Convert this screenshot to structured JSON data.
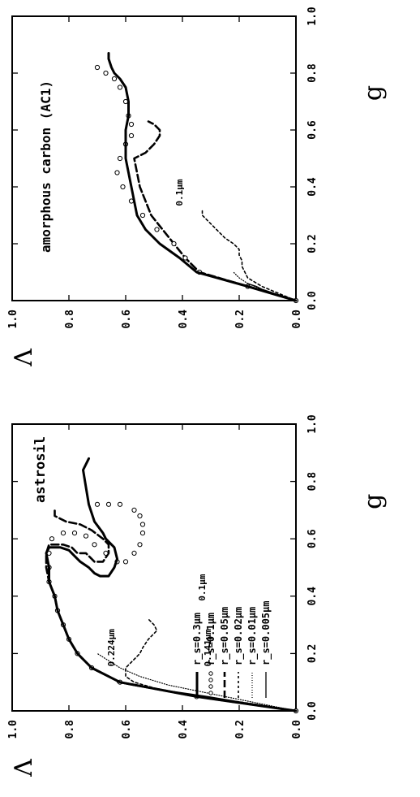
{
  "chart_data": [
    {
      "type": "line",
      "panel": "astrosil",
      "title": "astrosil",
      "xlabel": "g",
      "ylabel": "Λ",
      "xlim": [
        0,
        1
      ],
      "ylim": [
        0,
        1
      ],
      "xticks": [
        "0.0",
        "0.2",
        "0.4",
        "0.6",
        "0.8",
        "1.0"
      ],
      "yticks": [
        "0.0",
        "0.2",
        "0.4",
        "0.6",
        "0.8",
        "1.0"
      ],
      "legend_position": "bottom-right",
      "annotations": [
        {
          "text": "0.224μm",
          "x": 0.22,
          "y": 0.64
        },
        {
          "text": "0.1μm",
          "x": 0.43,
          "y": 0.32
        },
        {
          "text": "0.141μm",
          "x": 0.22,
          "y": 0.3
        }
      ],
      "series": [
        {
          "name": "r_s=0.005μm",
          "style": "solid-thin",
          "x": [
            0.0,
            0.01,
            0.02,
            0.03,
            0.04,
            0.05,
            0.06,
            0.07,
            0.08,
            0.09,
            0.1
          ],
          "y": [
            0.0,
            0.06,
            0.13,
            0.19,
            0.25,
            0.31,
            0.38,
            0.45,
            0.52,
            0.58,
            0.63
          ]
        },
        {
          "name": "r_s=0.01μm",
          "style": "dotted",
          "x": [
            0.0,
            0.01,
            0.02,
            0.03,
            0.05,
            0.07,
            0.09,
            0.12,
            0.15,
            0.2
          ],
          "y": [
            0.0,
            0.05,
            0.1,
            0.15,
            0.25,
            0.35,
            0.45,
            0.55,
            0.62,
            0.7
          ]
        },
        {
          "name": "r_s=0.02μm",
          "style": "dashed-short",
          "x": [
            0.0,
            0.02,
            0.04,
            0.06,
            0.08,
            0.1,
            0.12,
            0.15,
            0.18,
            0.2,
            0.22,
            0.25,
            0.27,
            0.28,
            0.3,
            0.32
          ],
          "y": [
            0.0,
            0.12,
            0.26,
            0.4,
            0.5,
            0.57,
            0.6,
            0.6,
            0.57,
            0.55,
            0.54,
            0.52,
            0.5,
            0.49,
            0.5,
            0.52
          ]
        },
        {
          "name": "r_s=0.05μm",
          "style": "dashed-long",
          "x": [
            0.0,
            0.05,
            0.1,
            0.15,
            0.2,
            0.25,
            0.3,
            0.35,
            0.4,
            0.45,
            0.5,
            0.55,
            0.58,
            0.58,
            0.57,
            0.55,
            0.55,
            0.52,
            0.52,
            0.55,
            0.58,
            0.6,
            0.63,
            0.65,
            0.66,
            0.68,
            0.7
          ],
          "y": [
            0.0,
            0.35,
            0.62,
            0.72,
            0.77,
            0.8,
            0.82,
            0.84,
            0.85,
            0.87,
            0.88,
            0.88,
            0.87,
            0.82,
            0.79,
            0.77,
            0.74,
            0.71,
            0.68,
            0.66,
            0.66,
            0.68,
            0.72,
            0.76,
            0.81,
            0.85,
            0.85
          ]
        },
        {
          "name": "r_s=0.1μm",
          "style": "circles",
          "x": [
            0.0,
            0.05,
            0.1,
            0.15,
            0.2,
            0.25,
            0.3,
            0.35,
            0.4,
            0.45,
            0.5,
            0.55,
            0.6,
            0.62,
            0.62,
            0.61,
            0.58,
            0.55,
            0.52,
            0.52,
            0.55,
            0.58,
            0.62,
            0.65,
            0.68,
            0.7,
            0.72,
            0.72,
            0.72
          ],
          "y": [
            0.0,
            0.35,
            0.62,
            0.72,
            0.77,
            0.8,
            0.82,
            0.84,
            0.85,
            0.87,
            0.87,
            0.87,
            0.86,
            0.82,
            0.78,
            0.74,
            0.71,
            0.67,
            0.63,
            0.6,
            0.57,
            0.55,
            0.54,
            0.54,
            0.55,
            0.57,
            0.62,
            0.66,
            0.7
          ]
        },
        {
          "name": "r_s=0.3μm",
          "style": "solid-thick",
          "x": [
            0.0,
            0.05,
            0.1,
            0.15,
            0.2,
            0.25,
            0.3,
            0.35,
            0.4,
            0.45,
            0.5,
            0.55,
            0.57,
            0.57,
            0.56,
            0.54,
            0.52,
            0.5,
            0.48,
            0.47,
            0.47,
            0.5,
            0.53,
            0.57,
            0.6,
            0.62,
            0.66,
            0.72,
            0.78,
            0.84,
            0.88
          ],
          "y": [
            0.0,
            0.35,
            0.62,
            0.72,
            0.77,
            0.8,
            0.82,
            0.84,
            0.85,
            0.87,
            0.87,
            0.88,
            0.87,
            0.83,
            0.8,
            0.78,
            0.76,
            0.73,
            0.71,
            0.69,
            0.66,
            0.64,
            0.63,
            0.64,
            0.67,
            0.68,
            0.71,
            0.73,
            0.74,
            0.75,
            0.73
          ]
        }
      ]
    },
    {
      "type": "line",
      "panel": "amorphous carbon",
      "title": "amorphous carbon (AC1)",
      "xlabel": "g",
      "ylabel": "Λ",
      "xlim": [
        0,
        1
      ],
      "ylim": [
        0,
        1
      ],
      "xticks": [
        "0.0",
        "0.2",
        "0.4",
        "0.6",
        "0.8",
        "1.0"
      ],
      "yticks": [
        "0.0",
        "0.2",
        "0.4",
        "0.6",
        "0.8",
        "1.0"
      ],
      "annotations": [
        {
          "text": "0.1μm",
          "x": 0.38,
          "y": 0.4
        }
      ],
      "series": [
        {
          "style": "solid-thin",
          "x": [
            0.0,
            0.01,
            0.02,
            0.03,
            0.04,
            0.05,
            0.06
          ],
          "y": [
            0.0,
            0.03,
            0.06,
            0.09,
            0.12,
            0.14,
            0.17
          ]
        },
        {
          "style": "dotted",
          "x": [
            0.0,
            0.02,
            0.04,
            0.06,
            0.08,
            0.1
          ],
          "y": [
            0.0,
            0.06,
            0.12,
            0.17,
            0.2,
            0.22
          ]
        },
        {
          "style": "dashed-short",
          "x": [
            0.0,
            0.05,
            0.08,
            0.1,
            0.12,
            0.14,
            0.16,
            0.18,
            0.2,
            0.22,
            0.25,
            0.28,
            0.3,
            0.32
          ],
          "y": [
            0.0,
            0.12,
            0.17,
            0.18,
            0.19,
            0.19,
            0.2,
            0.2,
            0.22,
            0.25,
            0.28,
            0.31,
            0.33,
            0.33
          ]
        },
        {
          "style": "dashed-long",
          "x": [
            0.0,
            0.05,
            0.1,
            0.15,
            0.2,
            0.25,
            0.3,
            0.35,
            0.4,
            0.45,
            0.5,
            0.52,
            0.55,
            0.58,
            0.6,
            0.62,
            0.63
          ],
          "y": [
            0.0,
            0.17,
            0.34,
            0.39,
            0.43,
            0.47,
            0.51,
            0.53,
            0.55,
            0.56,
            0.57,
            0.53,
            0.5,
            0.48,
            0.48,
            0.5,
            0.52
          ]
        },
        {
          "style": "circles",
          "x": [
            0.0,
            0.05,
            0.1,
            0.15,
            0.2,
            0.25,
            0.3,
            0.35,
            0.4,
            0.45,
            0.5,
            0.55,
            0.58,
            0.62,
            0.65,
            0.7,
            0.75,
            0.78,
            0.8,
            0.82
          ],
          "y": [
            0.0,
            0.17,
            0.34,
            0.39,
            0.43,
            0.49,
            0.54,
            0.58,
            0.61,
            0.63,
            0.62,
            0.6,
            0.58,
            0.58,
            0.59,
            0.6,
            0.62,
            0.64,
            0.67,
            0.7
          ]
        },
        {
          "style": "solid-thick",
          "x": [
            0.0,
            0.05,
            0.1,
            0.15,
            0.2,
            0.25,
            0.3,
            0.35,
            0.4,
            0.45,
            0.5,
            0.52,
            0.55,
            0.6,
            0.65,
            0.7,
            0.75,
            0.78,
            0.8,
            0.82,
            0.85,
            0.87
          ],
          "y": [
            0.0,
            0.17,
            0.35,
            0.41,
            0.48,
            0.53,
            0.56,
            0.57,
            0.58,
            0.59,
            0.6,
            0.6,
            0.6,
            0.6,
            0.59,
            0.59,
            0.6,
            0.62,
            0.64,
            0.65,
            0.66,
            0.66
          ]
        }
      ]
    }
  ]
}
